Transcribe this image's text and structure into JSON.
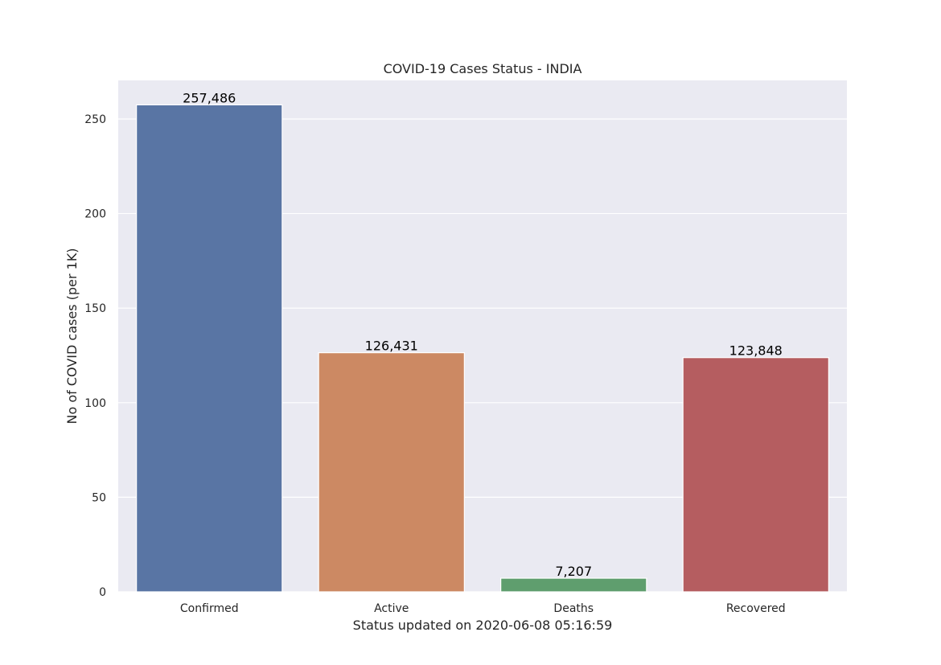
{
  "chart_data": {
    "type": "bar",
    "title": "COVID-19 Cases Status - INDIA",
    "xlabel": "Status updated on 2020-06-08 05:16:59",
    "ylabel": "No of COVID cases (per 1K)",
    "categories": [
      "Confirmed",
      "Active",
      "Deaths",
      "Recovered"
    ],
    "values": [
      257.486,
      126.431,
      7.207,
      123.848
    ],
    "data_labels": [
      "257,486",
      "126,431",
      "7,207",
      "123,848"
    ],
    "colors": [
      "#5975a4",
      "#cc8963",
      "#5f9e6e",
      "#b55d60"
    ],
    "yticks": [
      "0",
      "50",
      "100",
      "150",
      "200",
      "250"
    ],
    "ylim": [
      0,
      270.4
    ],
    "grid": true,
    "background": "#eaeaf2"
  }
}
